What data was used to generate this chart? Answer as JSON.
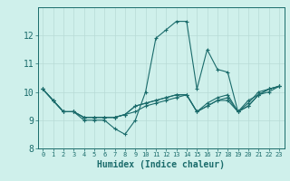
{
  "title": "",
  "xlabel": "Humidex (Indice chaleur)",
  "xlim": [
    -0.5,
    23.5
  ],
  "ylim": [
    8,
    13
  ],
  "yticks": [
    8,
    9,
    10,
    11,
    12
  ],
  "xticks": [
    0,
    1,
    2,
    3,
    4,
    5,
    6,
    7,
    8,
    9,
    10,
    11,
    12,
    13,
    14,
    15,
    16,
    17,
    18,
    19,
    20,
    21,
    22,
    23
  ],
  "bg_color": "#cff0eb",
  "line_color": "#1a6b6b",
  "grid_color": "#b8dbd6",
  "series": [
    [
      10.1,
      9.7,
      9.3,
      9.3,
      9.0,
      9.0,
      9.0,
      8.7,
      8.5,
      9.0,
      10.0,
      11.9,
      12.2,
      12.5,
      12.5,
      10.1,
      11.5,
      10.8,
      10.7,
      9.3,
      9.7,
      9.9,
      10.1,
      10.2
    ],
    [
      10.1,
      9.7,
      9.3,
      9.3,
      9.1,
      9.1,
      9.1,
      9.1,
      9.2,
      9.5,
      9.6,
      9.7,
      9.8,
      9.9,
      9.9,
      9.3,
      9.5,
      9.7,
      9.7,
      9.3,
      9.5,
      9.9,
      10.1,
      10.2
    ],
    [
      10.1,
      9.7,
      9.3,
      9.3,
      9.1,
      9.1,
      9.1,
      9.1,
      9.2,
      9.5,
      9.6,
      9.7,
      9.8,
      9.9,
      9.9,
      9.3,
      9.6,
      9.8,
      9.9,
      9.3,
      9.6,
      10.0,
      10.1,
      10.2
    ],
    [
      10.1,
      9.7,
      9.3,
      9.3,
      9.1,
      9.1,
      9.1,
      9.1,
      9.2,
      9.3,
      9.5,
      9.6,
      9.7,
      9.8,
      9.9,
      9.3,
      9.5,
      9.7,
      9.8,
      9.3,
      9.5,
      9.9,
      10.0,
      10.2
    ]
  ]
}
